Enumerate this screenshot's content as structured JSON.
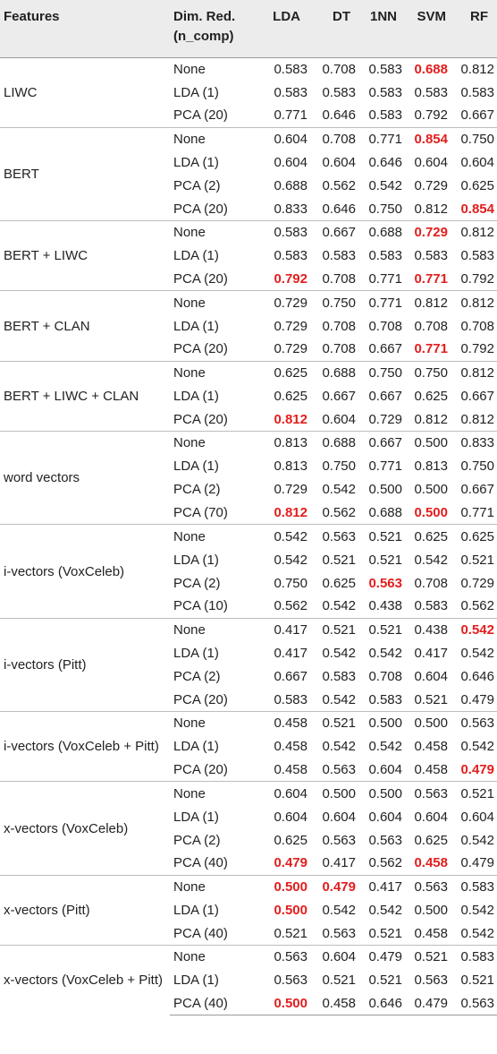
{
  "headers": {
    "features": "Features",
    "dim_line1": "Dim. Red.",
    "dim_line2": "(n_comp)",
    "lda": "LDA",
    "dt": "DT",
    "nn": "1NN",
    "svm": "SVM",
    "rf": "RF"
  },
  "colors": {
    "highlight": "#e31d1d",
    "header_bg": "#ececec"
  },
  "groups": [
    {
      "feature": "LIWC",
      "rows": [
        {
          "dim": "None",
          "vals": [
            "0.583",
            "0.708",
            "0.583",
            "0.688",
            "0.812"
          ],
          "hl": [
            3
          ]
        },
        {
          "dim": "LDA (1)",
          "vals": [
            "0.583",
            "0.583",
            "0.583",
            "0.583",
            "0.583"
          ],
          "hl": []
        },
        {
          "dim": "PCA (20)",
          "vals": [
            "0.771",
            "0.646",
            "0.583",
            "0.792",
            "0.667"
          ],
          "hl": []
        }
      ]
    },
    {
      "feature": "BERT",
      "rows": [
        {
          "dim": "None",
          "vals": [
            "0.604",
            "0.708",
            "0.771",
            "0.854",
            "0.750"
          ],
          "hl": [
            3
          ]
        },
        {
          "dim": "LDA (1)",
          "vals": [
            "0.604",
            "0.604",
            "0.646",
            "0.604",
            "0.604"
          ],
          "hl": []
        },
        {
          "dim": "PCA (2)",
          "vals": [
            "0.688",
            "0.562",
            "0.542",
            "0.729",
            "0.625"
          ],
          "hl": []
        },
        {
          "dim": "PCA (20)",
          "vals": [
            "0.833",
            "0.646",
            "0.750",
            "0.812",
            "0.854"
          ],
          "hl": [
            4
          ]
        }
      ]
    },
    {
      "feature": "BERT + LIWC",
      "rows": [
        {
          "dim": "None",
          "vals": [
            "0.583",
            "0.667",
            "0.688",
            "0.729",
            "0.812"
          ],
          "hl": [
            3
          ]
        },
        {
          "dim": "LDA (1)",
          "vals": [
            "0.583",
            "0.583",
            "0.583",
            "0.583",
            "0.583"
          ],
          "hl": []
        },
        {
          "dim": "PCA (20)",
          "vals": [
            "0.792",
            "0.708",
            "0.771",
            "0.771",
            "0.792"
          ],
          "hl": [
            0,
            3
          ]
        }
      ]
    },
    {
      "feature": "BERT + CLAN",
      "rows": [
        {
          "dim": "None",
          "vals": [
            "0.729",
            "0.750",
            "0.771",
            "0.812",
            "0.812"
          ],
          "hl": []
        },
        {
          "dim": "LDA (1)",
          "vals": [
            "0.729",
            "0.708",
            "0.708",
            "0.708",
            "0.708"
          ],
          "hl": []
        },
        {
          "dim": "PCA (20)",
          "vals": [
            "0.729",
            "0.708",
            "0.667",
            "0.771",
            "0.792"
          ],
          "hl": [
            3
          ]
        }
      ]
    },
    {
      "feature": "BERT + LIWC + CLAN",
      "rows": [
        {
          "dim": "None",
          "vals": [
            "0.625",
            "0.688",
            "0.750",
            "0.750",
            "0.812"
          ],
          "hl": []
        },
        {
          "dim": "LDA (1)",
          "vals": [
            "0.625",
            "0.667",
            "0.667",
            "0.625",
            "0.667"
          ],
          "hl": []
        },
        {
          "dim": "PCA (20)",
          "vals": [
            "0.812",
            "0.604",
            "0.729",
            "0.812",
            "0.812"
          ],
          "hl": [
            0
          ]
        }
      ]
    },
    {
      "feature": "word vectors",
      "rows": [
        {
          "dim": "None",
          "vals": [
            "0.813",
            "0.688",
            "0.667",
            "0.500",
            "0.833"
          ],
          "hl": []
        },
        {
          "dim": "LDA (1)",
          "vals": [
            "0.813",
            "0.750",
            "0.771",
            "0.813",
            "0.750"
          ],
          "hl": []
        },
        {
          "dim": "PCA (2)",
          "vals": [
            "0.729",
            "0.542",
            "0.500",
            "0.500",
            "0.667"
          ],
          "hl": []
        },
        {
          "dim": "PCA (70)",
          "vals": [
            "0.812",
            "0.562",
            "0.688",
            "0.500",
            "0.771"
          ],
          "hl": [
            0,
            3
          ]
        }
      ]
    },
    {
      "feature": "i-vectors (VoxCeleb)",
      "rows": [
        {
          "dim": "None",
          "vals": [
            "0.542",
            "0.563",
            "0.521",
            "0.625",
            "0.625"
          ],
          "hl": []
        },
        {
          "dim": "LDA (1)",
          "vals": [
            "0.542",
            "0.521",
            "0.521",
            "0.542",
            "0.521"
          ],
          "hl": []
        },
        {
          "dim": "PCA (2)",
          "vals": [
            "0.750",
            "0.625",
            "0.563",
            "0.708",
            "0.729"
          ],
          "hl": [
            2
          ]
        },
        {
          "dim": "PCA (10)",
          "vals": [
            "0.562",
            "0.542",
            "0.438",
            "0.583",
            "0.562"
          ],
          "hl": []
        }
      ]
    },
    {
      "feature": "i-vectors (Pitt)",
      "rows": [
        {
          "dim": "None",
          "vals": [
            "0.417",
            "0.521",
            "0.521",
            "0.438",
            "0.542"
          ],
          "hl": [
            4
          ]
        },
        {
          "dim": "LDA (1)",
          "vals": [
            "0.417",
            "0.542",
            "0.542",
            "0.417",
            "0.542"
          ],
          "hl": []
        },
        {
          "dim": "PCA (2)",
          "vals": [
            "0.667",
            "0.583",
            "0.708",
            "0.604",
            "0.646"
          ],
          "hl": []
        },
        {
          "dim": "PCA (20)",
          "vals": [
            "0.583",
            "0.542",
            "0.583",
            "0.521",
            "0.479"
          ],
          "hl": []
        }
      ]
    },
    {
      "feature": "i-vectors (VoxCeleb + Pitt)",
      "rows": [
        {
          "dim": "None",
          "vals": [
            "0.458",
            "0.521",
            "0.500",
            "0.500",
            "0.563"
          ],
          "hl": []
        },
        {
          "dim": "LDA (1)",
          "vals": [
            "0.458",
            "0.542",
            "0.542",
            "0.458",
            "0.542"
          ],
          "hl": []
        },
        {
          "dim": "PCA (20)",
          "vals": [
            "0.458",
            "0.563",
            "0.604",
            "0.458",
            "0.479"
          ],
          "hl": [
            4
          ]
        }
      ]
    },
    {
      "feature": "x-vectors (VoxCeleb)",
      "rows": [
        {
          "dim": "None",
          "vals": [
            "0.604",
            "0.500",
            "0.500",
            "0.563",
            "0.521"
          ],
          "hl": []
        },
        {
          "dim": "LDA (1)",
          "vals": [
            "0.604",
            "0.604",
            "0.604",
            "0.604",
            "0.604"
          ],
          "hl": []
        },
        {
          "dim": "PCA (2)",
          "vals": [
            "0.625",
            "0.563",
            "0.563",
            "0.625",
            "0.542"
          ],
          "hl": []
        },
        {
          "dim": "PCA (40)",
          "vals": [
            "0.479",
            "0.417",
            "0.562",
            "0.458",
            "0.479"
          ],
          "hl": [
            0,
            3
          ]
        }
      ]
    },
    {
      "feature": "x-vectors (Pitt)",
      "rows": [
        {
          "dim": "None",
          "vals": [
            "0.500",
            "0.479",
            "0.417",
            "0.563",
            "0.583"
          ],
          "hl": [
            0,
            1
          ]
        },
        {
          "dim": "LDA (1)",
          "vals": [
            "0.500",
            "0.542",
            "0.542",
            "0.500",
            "0.542"
          ],
          "hl": [
            0
          ]
        },
        {
          "dim": "PCA (40)",
          "vals": [
            "0.521",
            "0.563",
            "0.521",
            "0.458",
            "0.542"
          ],
          "hl": []
        }
      ]
    },
    {
      "feature": "x-vectors (VoxCeleb + Pitt)",
      "rows": [
        {
          "dim": "None",
          "vals": [
            "0.563",
            "0.604",
            "0.479",
            "0.521",
            "0.583"
          ],
          "hl": []
        },
        {
          "dim": "LDA (1)",
          "vals": [
            "0.563",
            "0.521",
            "0.521",
            "0.563",
            "0.521"
          ],
          "hl": []
        },
        {
          "dim": "PCA (40)",
          "vals": [
            "0.500",
            "0.458",
            "0.646",
            "0.479",
            "0.563"
          ],
          "hl": [
            0
          ]
        }
      ]
    }
  ]
}
